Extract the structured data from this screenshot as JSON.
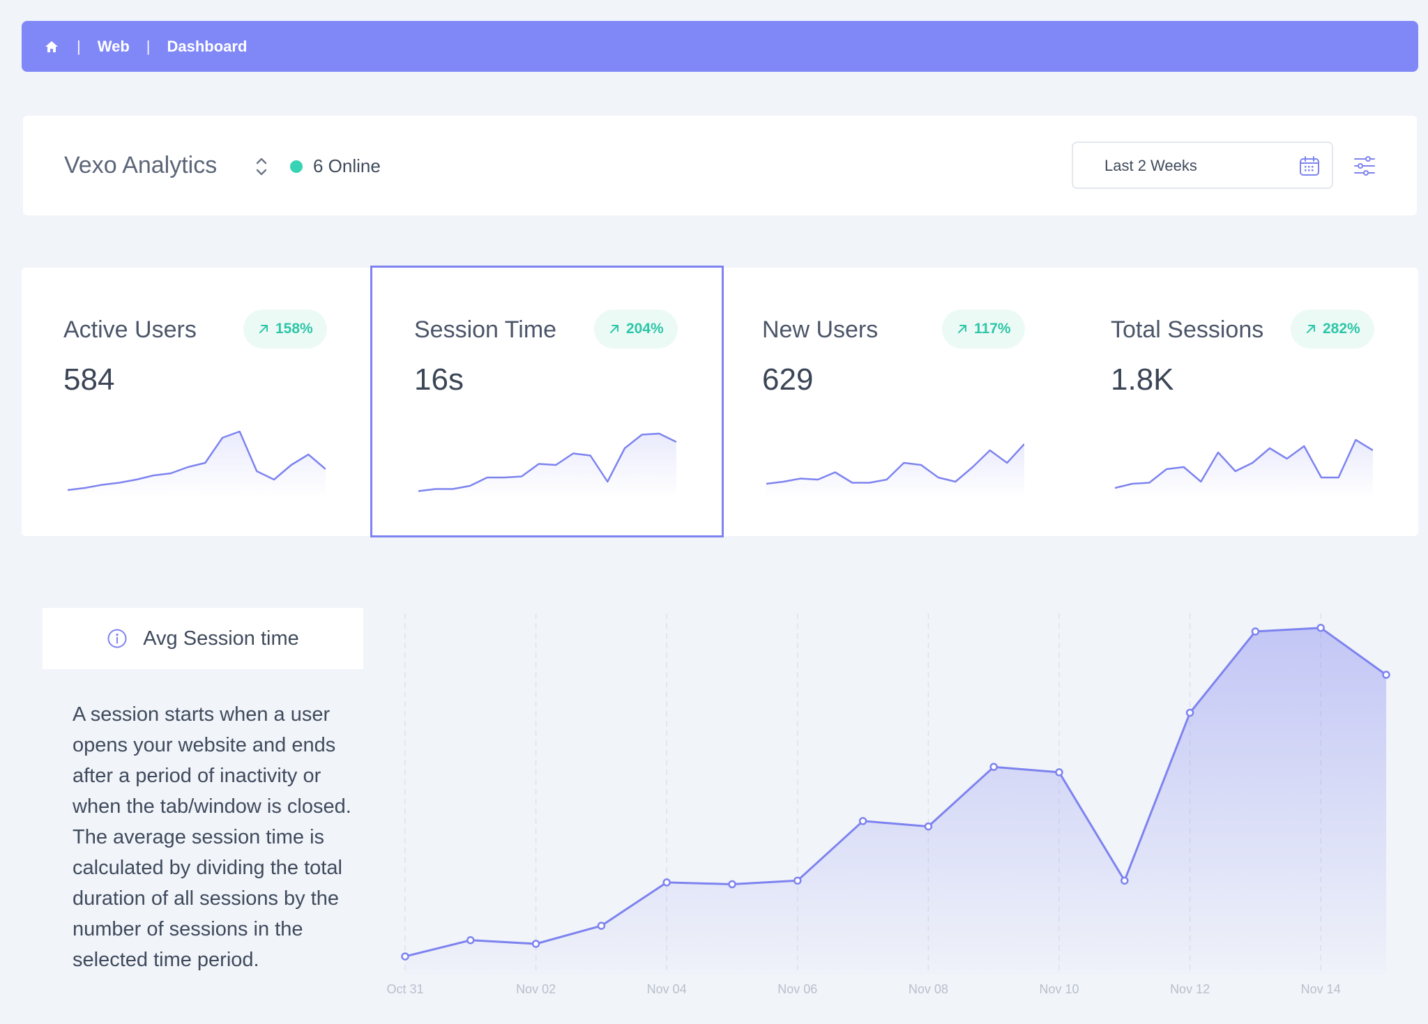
{
  "breadcrumb": {
    "items": [
      "Web",
      "Dashboard"
    ]
  },
  "header": {
    "app_name": "Vexo Analytics",
    "online": "6 Online",
    "date_range": "Last 2 Weeks",
    "colors": {
      "accent": "#8088f8",
      "online": "#37d3b5"
    }
  },
  "stats": [
    {
      "label": "Active Users",
      "value": "584",
      "change": "158%",
      "spark": [
        2,
        4,
        7,
        9,
        12,
        16,
        18,
        24,
        28,
        52,
        58,
        20,
        12,
        26,
        36,
        22
      ]
    },
    {
      "label": "Session Time",
      "value": "16s",
      "change": "204%",
      "spark": [
        1,
        3,
        3,
        6,
        14,
        14,
        15,
        27,
        26,
        37,
        35,
        10,
        42,
        55,
        56,
        48
      ]
    },
    {
      "label": "New Users",
      "value": "629",
      "change": "117%",
      "spark": [
        8,
        10,
        13,
        12,
        19,
        9,
        9,
        12,
        28,
        26,
        14,
        10,
        24,
        40,
        28,
        46
      ]
    },
    {
      "label": "Total Sessions",
      "value": "1.8K",
      "change": "282%",
      "spark": [
        4,
        8,
        9,
        22,
        24,
        10,
        38,
        20,
        28,
        42,
        32,
        44,
        14,
        14,
        50,
        40
      ]
    }
  ],
  "info": {
    "title": "Avg Session time",
    "description": "A session starts when a user opens your website and ends after a period of inactivity or when the tab/window is closed. The average session time is calculated by dividing the total duration of all sessions by the number of sessions in the selected time period."
  },
  "chart_data": {
    "type": "area",
    "x": [
      "Oct 31",
      "Nov 01",
      "Nov 02",
      "Nov 03",
      "Nov 04",
      "Nov 05",
      "Nov 06",
      "Nov 07",
      "Nov 08",
      "Nov 09",
      "Nov 10",
      "Nov 11",
      "Nov 12",
      "Nov 13",
      "Nov 14",
      "Nov 15"
    ],
    "tick_labels": [
      "Oct 31",
      "Nov 02",
      "Nov 04",
      "Nov 06",
      "Nov 08",
      "Nov 10",
      "Nov 12",
      "Nov 14"
    ],
    "values": [
      1.0,
      1.9,
      1.7,
      2.7,
      5.1,
      5.0,
      5.2,
      8.5,
      8.2,
      11.5,
      11.2,
      5.2,
      14.5,
      19.0,
      19.2,
      16.6
    ],
    "ylim": [
      0,
      20
    ],
    "grid": "vertical dashed",
    "color": "#7d83ef"
  }
}
